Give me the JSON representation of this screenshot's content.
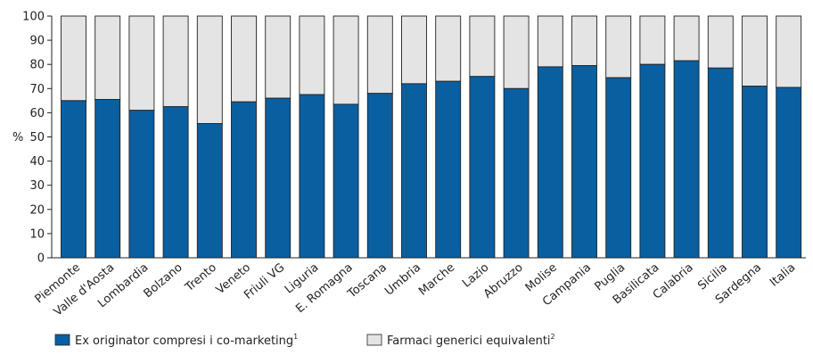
{
  "chart_data": {
    "type": "bar",
    "stacked": true,
    "categories": [
      "Piemonte",
      "Valle d'Aosta",
      "Lombardia",
      "Bolzano",
      "Trento",
      "Veneto",
      "Friuli VG",
      "Liguria",
      "E. Romagna",
      "Toscana",
      "Umbria",
      "Marche",
      "Lazio",
      "Abruzzo",
      "Molise",
      "Campania",
      "Puglia",
      "Basilicata",
      "Calabria",
      "Sicilia",
      "Sardegna",
      "Italia"
    ],
    "series": [
      {
        "name": "Ex originator compresi i co-marketing",
        "color": "#0a5fa0",
        "values": [
          65,
          65.5,
          61,
          62.5,
          55.5,
          64.5,
          66,
          67.5,
          63.5,
          68,
          72,
          73,
          75,
          70,
          79,
          79.5,
          74.5,
          80,
          81.5,
          78.5,
          71,
          70.5
        ]
      },
      {
        "name": "Farmaci generici equivalenti",
        "color": "#e4e4e4",
        "values": [
          35,
          34.5,
          39,
          37.5,
          44.5,
          35.5,
          34,
          32.5,
          36.5,
          32,
          28,
          27,
          25,
          30,
          21,
          20.5,
          25.5,
          20,
          18.5,
          21.5,
          29,
          29.5
        ]
      }
    ],
    "ylabel": "%",
    "ylim": [
      0,
      100
    ],
    "yticks": [
      "0",
      "10",
      "20",
      "30",
      "40",
      "50",
      "60",
      "70",
      "80",
      "90",
      "100"
    ],
    "grid": false,
    "legend_position": "bottom-left"
  },
  "legend": [
    {
      "label": "Ex originator compresi i co-marketing",
      "sup": "1"
    },
    {
      "label": "Farmaci generici equivalenti",
      "sup": "2"
    }
  ]
}
